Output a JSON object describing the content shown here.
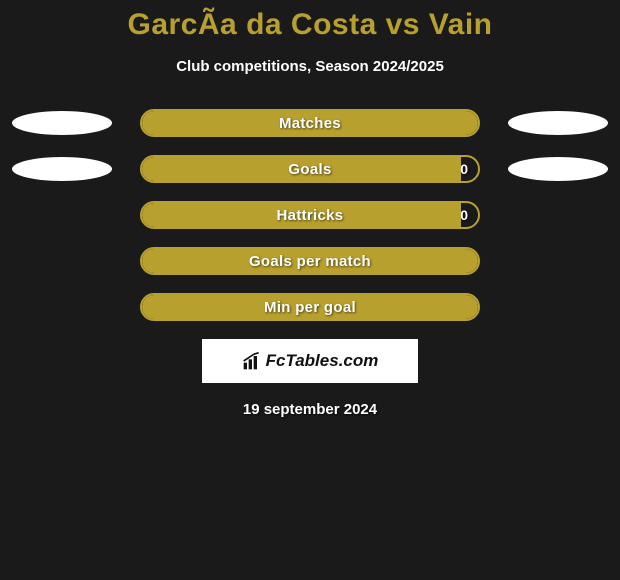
{
  "title": "GarcÃ­a da Costa vs Vain",
  "subtitle": "Club competitions, Season 2024/2025",
  "date": "19 september 2024",
  "colors": {
    "accent": "#b8a02e",
    "background": "#1a1a1a",
    "text": "#ffffff",
    "ellipse_left": "#ffffff",
    "ellipse_right": "#ffffff",
    "branding_bg": "#ffffff",
    "branding_text": "#111111"
  },
  "stats": [
    {
      "label": "Matches",
      "fill_pct": 100,
      "value_right": null,
      "show_left": true,
      "show_right": true
    },
    {
      "label": "Goals",
      "fill_pct": 95,
      "value_right": "0",
      "show_left": true,
      "show_right": true
    },
    {
      "label": "Hattricks",
      "fill_pct": 95,
      "value_right": "0",
      "show_left": false,
      "show_right": false
    },
    {
      "label": "Goals per match",
      "fill_pct": 100,
      "value_right": null,
      "show_left": false,
      "show_right": false
    },
    {
      "label": "Min per goal",
      "fill_pct": 100,
      "value_right": null,
      "show_left": false,
      "show_right": false
    }
  ],
  "branding": {
    "text": "FcTables.com",
    "icon_name": "bar-chart-icon"
  }
}
